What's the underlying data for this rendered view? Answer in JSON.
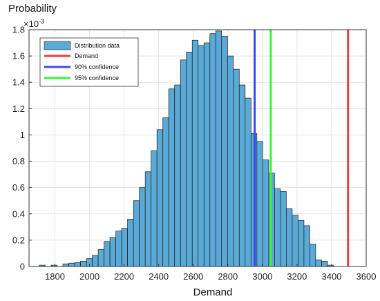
{
  "chart_data": {
    "type": "bar",
    "title": "",
    "xlabel": "Demand",
    "ylabel": "Probability",
    "y_exponent_label": "×10",
    "y_exponent_power": "-3",
    "xlim": [
      1650,
      3600
    ],
    "ylim": [
      0,
      1.8
    ],
    "grid": true,
    "legend_placement": "top-left",
    "x_ticks": [
      1800,
      2000,
      2200,
      2400,
      2600,
      2800,
      3000,
      3200,
      3400,
      3600
    ],
    "y_ticks": [
      0,
      0.2,
      0.4,
      0.6,
      0.8,
      1,
      1.2,
      1.4,
      1.6,
      1.8
    ],
    "histogram": {
      "name": "Distribution data",
      "color": "#5aa9d6",
      "bin_width": 34,
      "bin_starts": [
        1710,
        1744,
        1778,
        1812,
        1846,
        1880,
        1914,
        1948,
        1982,
        2016,
        2050,
        2084,
        2118,
        2152,
        2186,
        2220,
        2254,
        2288,
        2322,
        2356,
        2390,
        2424,
        2458,
        2492,
        2526,
        2560,
        2594,
        2628,
        2662,
        2696,
        2730,
        2764,
        2798,
        2832,
        2866,
        2900,
        2934,
        2968,
        3002,
        3036,
        3070,
        3104,
        3138,
        3172,
        3206,
        3240,
        3274,
        3308,
        3342,
        3376
      ],
      "values": [
        0.01,
        0.0,
        0.01,
        0.0,
        0.02,
        0.025,
        0.03,
        0.04,
        0.06,
        0.085,
        0.13,
        0.19,
        0.22,
        0.27,
        0.29,
        0.36,
        0.5,
        0.6,
        0.72,
        0.88,
        1.04,
        1.13,
        1.35,
        1.38,
        1.57,
        1.63,
        1.72,
        1.68,
        1.7,
        1.77,
        1.79,
        1.75,
        1.6,
        1.5,
        1.38,
        1.28,
        1.01,
        0.95,
        0.81,
        0.71,
        0.59,
        0.57,
        0.44,
        0.39,
        0.35,
        0.31,
        0.17,
        0.05,
        0.04,
        0.01
      ]
    },
    "lines": [
      {
        "name": "Demand",
        "x": 3495,
        "color": "#f03c3c"
      },
      {
        "name": "90% confidence",
        "x": 2955,
        "color": "#3c46f0"
      },
      {
        "name": "95% confidence",
        "x": 3048,
        "color": "#3cf03c"
      }
    ]
  }
}
